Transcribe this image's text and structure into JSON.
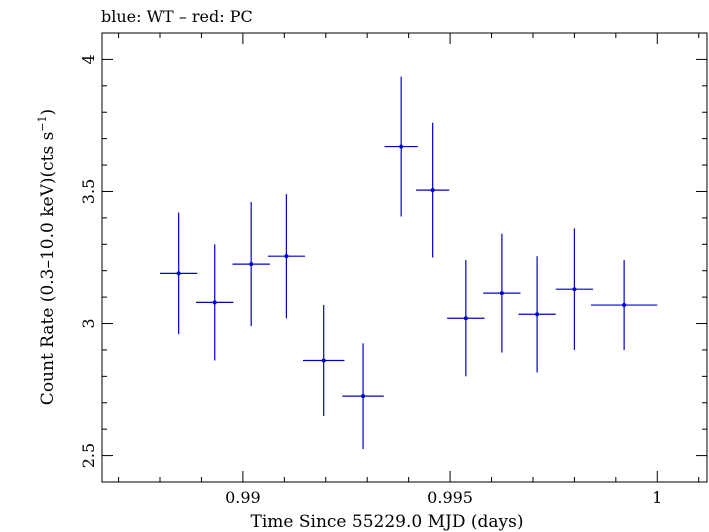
{
  "chart_data": {
    "type": "scatter",
    "title": "blue: WT – red: PC",
    "xlabel": "Time Since 55229.0 MJD (days)",
    "ylabel_main": "Count Rate (0.3–10.0 keV)(cts s",
    "ylabel_sup": "−1",
    "ylabel_end": ")",
    "xlim": [
      0.9866,
      1.0012
    ],
    "ylim": [
      2.4,
      4.1
    ],
    "x_ticks": [
      0.99,
      0.995,
      1.0
    ],
    "x_tick_labels": [
      "0.99",
      "0.995",
      "1"
    ],
    "y_ticks": [
      2.5,
      3.0,
      3.5,
      4.0
    ],
    "y_tick_labels": [
      "2.5",
      "3",
      "3.5",
      "4"
    ],
    "x_minor_step": 0.001,
    "y_minor_step": 0.1,
    "grid": false,
    "series": [
      {
        "color": "#0000cc",
        "points": [
          {
            "x": 0.98845,
            "xerr": 0.00045,
            "y": 3.19,
            "yerr": 0.23
          },
          {
            "x": 0.98932,
            "xerr": 0.00045,
            "y": 3.08,
            "yerr": 0.22
          },
          {
            "x": 0.9902,
            "xerr": 0.00045,
            "y": 3.225,
            "yerr": 0.235
          },
          {
            "x": 0.99105,
            "xerr": 0.00045,
            "y": 3.255,
            "yerr": 0.235
          },
          {
            "x": 0.99195,
            "xerr": 0.0005,
            "y": 2.86,
            "yerr": 0.21
          },
          {
            "x": 0.9929,
            "xerr": 0.0005,
            "y": 2.725,
            "yerr": 0.2
          },
          {
            "x": 0.99382,
            "xerr": 0.0004,
            "y": 3.67,
            "yerr": 0.265
          },
          {
            "x": 0.99458,
            "xerr": 0.0004,
            "y": 3.505,
            "yerr": 0.255
          },
          {
            "x": 0.99538,
            "xerr": 0.00045,
            "y": 3.02,
            "yerr": 0.22
          },
          {
            "x": 0.99625,
            "xerr": 0.00045,
            "y": 3.115,
            "yerr": 0.225
          },
          {
            "x": 0.9971,
            "xerr": 0.00045,
            "y": 3.035,
            "yerr": 0.22
          },
          {
            "x": 0.998,
            "xerr": 0.00045,
            "y": 3.13,
            "yerr": 0.23
          },
          {
            "x": 0.9992,
            "xerr": 0.0008,
            "y": 3.07,
            "yerr": 0.17
          }
        ]
      }
    ]
  }
}
